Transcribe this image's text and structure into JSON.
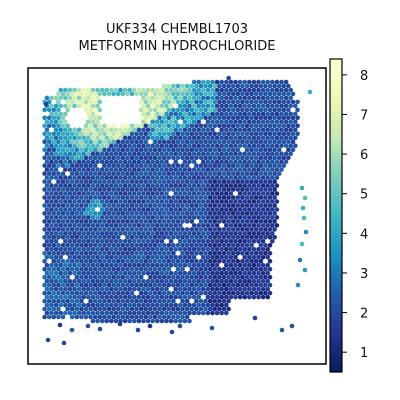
{
  "chart_data": {
    "type": "heatmap",
    "title_lines": [
      "UKF334 CHEMBL1703",
      "METFORMIN HYDROCHLORIDE"
    ],
    "xlabel": "",
    "ylabel": "",
    "grid": false,
    "colorbar": {
      "colormap": "YlGnBu",
      "range": [
        0.5,
        8.4
      ],
      "ticks": [
        1,
        2,
        3,
        4,
        5,
        6,
        7,
        8
      ],
      "tick_labels": [
        "1",
        "2",
        "3",
        "4",
        "5",
        "6",
        "7",
        "8"
      ]
    },
    "description_regions": [
      {
        "region": "upper-left band",
        "value_range": [
          4,
          8
        ]
      },
      {
        "region": "tissue body",
        "value_range": [
          1,
          3
        ]
      }
    ]
  }
}
